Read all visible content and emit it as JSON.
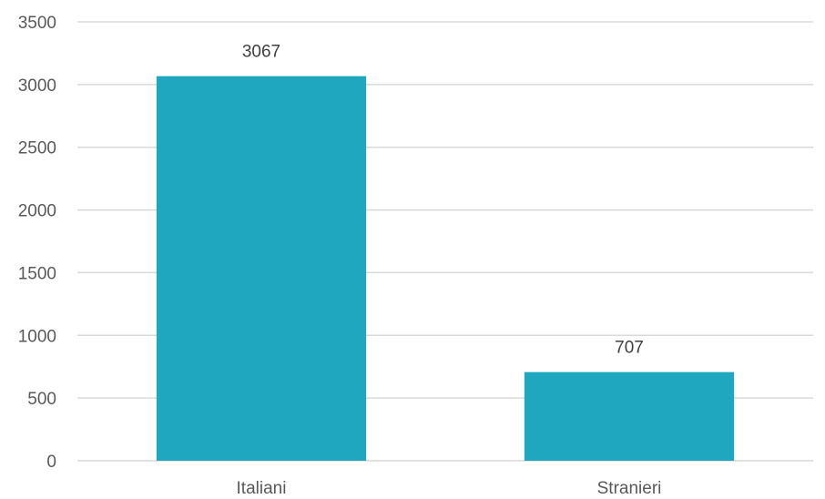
{
  "chart_data": {
    "type": "bar",
    "title": "",
    "xlabel": "",
    "ylabel": "",
    "categories": [
      "Italiani",
      "Stranieri"
    ],
    "values": [
      3067,
      707
    ],
    "data_labels": [
      "3067",
      "707"
    ],
    "ylim": [
      0,
      3500
    ],
    "yticks": [
      0,
      500,
      1000,
      1500,
      2000,
      2500,
      3000,
      3500
    ],
    "ytick_labels": [
      "0",
      "500",
      "1000",
      "1500",
      "2000",
      "2500",
      "3000",
      "3500"
    ],
    "grid": true,
    "legend": "none",
    "bar_color": "#1fa7c0",
    "grid_color": "#d9d9d9"
  }
}
